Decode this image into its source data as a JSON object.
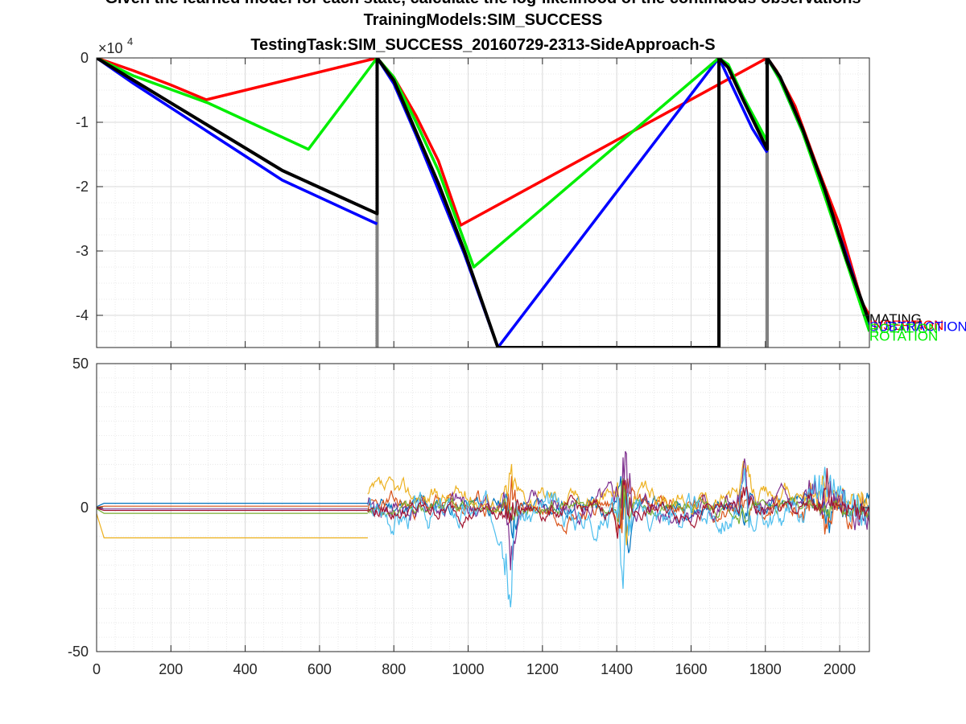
{
  "figure": {
    "title_lines": [
      "Given the learned model for each state, calculate the log-likelihood of the continuous observations",
      "TrainingModels:SIM_SUCCESS",
      "TestingTask:SIM_SUCCESS_20160729-2313-SideApproach-S"
    ]
  },
  "chart_data": [
    {
      "type": "line",
      "xlim": [
        0,
        2080
      ],
      "ylim": [
        -45000,
        0
      ],
      "x_ticks": [
        0,
        200,
        400,
        600,
        800,
        1000,
        1200,
        1400,
        1600,
        1800,
        2000
      ],
      "y_ticks": [
        0,
        -10000,
        -20000,
        -30000,
        -40000
      ],
      "y_tick_labels": [
        "0",
        "-1",
        "-2",
        "-3",
        "-4"
      ],
      "y_exponent_label": "×10",
      "y_exponent_power": "4",
      "grid": true,
      "minor_grid": true,
      "state_boundaries": [
        755,
        1675,
        1805
      ],
      "boundary_color": "#808080",
      "series": [
        {
          "name": "INSERTION",
          "color": "#ff0000",
          "points": [
            [
              0,
              0
            ],
            [
              100,
              -2000
            ],
            [
              200,
              -4200
            ],
            [
              295,
              -6500
            ],
            [
              755,
              0
            ],
            [
              800,
              -3000
            ],
            [
              860,
              -9000
            ],
            [
              920,
              -16000
            ],
            [
              980,
              -26000
            ],
            [
              1805,
              0
            ],
            [
              1830,
              -2000
            ],
            [
              1880,
              -7500
            ],
            [
              1940,
              -17000
            ],
            [
              2000,
              -26000
            ],
            [
              2060,
              -38000
            ],
            [
              2080,
              -40000
            ]
          ]
        },
        {
          "name": "SUBTRACTION",
          "color": "#0000ff",
          "points": [
            [
              0,
              0
            ],
            [
              100,
              -4000
            ],
            [
              300,
              -11500
            ],
            [
              500,
              -19000
            ],
            [
              755,
              -25800
            ],
            [
              755,
              0
            ],
            [
              800,
              -4000
            ],
            [
              860,
              -12000
            ],
            [
              920,
              -20500
            ],
            [
              990,
              -30500
            ],
            [
              1080,
              -45000
            ],
            [
              1675,
              0
            ],
            [
              1720,
              -5500
            ],
            [
              1765,
              -11000
            ],
            [
              1805,
              -14700
            ],
            [
              1805,
              0
            ],
            [
              1840,
              -3500
            ],
            [
              1900,
              -11500
            ],
            [
              1960,
              -21000
            ],
            [
              2020,
              -31000
            ],
            [
              2080,
              -41500
            ]
          ]
        },
        {
          "name": "ROTATION",
          "color": "#00ee00",
          "points": [
            [
              0,
              0
            ],
            [
              100,
              -2800
            ],
            [
              300,
              -7000
            ],
            [
              570,
              -14200
            ],
            [
              755,
              0
            ],
            [
              800,
              -3000
            ],
            [
              860,
              -10000
            ],
            [
              920,
              -17500
            ],
            [
              1015,
              -32500
            ],
            [
              1675,
              0
            ],
            [
              1700,
              -1000
            ],
            [
              1740,
              -6000
            ],
            [
              1805,
              -13000
            ],
            [
              1805,
              0
            ],
            [
              1840,
              -3500
            ],
            [
              1900,
              -11500
            ],
            [
              1960,
              -21500
            ],
            [
              2020,
              -32000
            ],
            [
              2080,
              -42500
            ]
          ]
        },
        {
          "name": "MATING",
          "color": "#000000",
          "points": [
            [
              0,
              0
            ],
            [
              100,
              -3500
            ],
            [
              300,
              -10500
            ],
            [
              500,
              -17500
            ],
            [
              755,
              -24200
            ],
            [
              755,
              0
            ],
            [
              800,
              -3500
            ],
            [
              860,
              -11500
            ],
            [
              920,
              -19500
            ],
            [
              990,
              -30000
            ],
            [
              1080,
              -45000
            ],
            [
              1675,
              -45000
            ],
            [
              1675,
              0
            ],
            [
              1700,
              -1500
            ],
            [
              1740,
              -6500
            ],
            [
              1805,
              -14200
            ],
            [
              1805,
              0
            ],
            [
              1840,
              -3000
            ],
            [
              1900,
              -11000
            ],
            [
              1960,
              -20500
            ],
            [
              2020,
              -31500
            ],
            [
              2080,
              -41000
            ]
          ]
        }
      ],
      "end_labels": [
        {
          "text": "MATING",
          "color": "#000000",
          "value": -40500
        },
        {
          "text": "INSERTION",
          "color": "#ff0000",
          "value": -41500
        },
        {
          "text": "SUBTRACTION",
          "color": "#0000ff",
          "value": -41700
        },
        {
          "text": "ROTATION",
          "color": "#00ee00",
          "value": -42000
        },
        {
          "text": "ROTATION",
          "color": "#00ee00",
          "value": -43200
        }
      ]
    },
    {
      "type": "line",
      "xlim": [
        0,
        2080
      ],
      "ylim": [
        -50,
        50
      ],
      "x_ticks": [
        0,
        200,
        400,
        600,
        800,
        1000,
        1200,
        1400,
        1600,
        1800,
        2000
      ],
      "y_ticks": [
        50,
        0,
        -50
      ],
      "y_tick_labels": [
        "50",
        "0",
        "-50"
      ],
      "grid": true,
      "minor_grid": true,
      "series": [
        {
          "color": "#0072bd",
          "base": 1.5,
          "amp": 4,
          "seed": 11
        },
        {
          "color": "#d95319",
          "base": 0.5,
          "amp": 5,
          "seed": 23
        },
        {
          "color": "#edb120",
          "base": 11,
          "amp": 5,
          "seed": 37
        },
        {
          "color": "#7e2f8e",
          "base": -2,
          "amp": 6,
          "seed": 41
        },
        {
          "color": "#77ac30",
          "base": 0,
          "amp": 3,
          "seed": 53
        },
        {
          "color": "#4dbeee",
          "base": -5,
          "amp": 7,
          "seed": 67
        },
        {
          "color": "#a2142f",
          "base": -3,
          "amp": 4,
          "seed": 79
        }
      ],
      "initial_segment": [
        {
          "color": "#0072bd",
          "value": 1.5
        },
        {
          "color": "#d95319",
          "value": 0.5
        },
        {
          "color": "#7e2f8e",
          "value": -0.5
        },
        {
          "color": "#a2142f",
          "value": -1.0
        },
        {
          "color": "#77ac30",
          "value": -2.0
        },
        {
          "color": "#edb120",
          "value": -10.5
        }
      ],
      "transition_x": 730
    }
  ]
}
